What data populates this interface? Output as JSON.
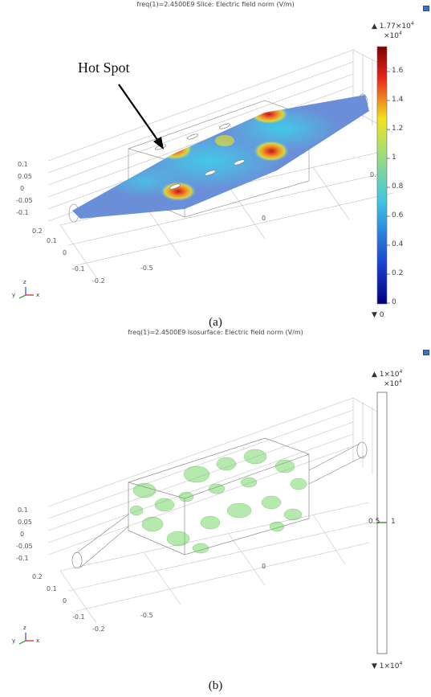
{
  "panel_a": {
    "title": "freq(1)=2.4500E9   Slice: Electric field norm (V/m)",
    "annotation": "Hot Spot",
    "caption": "(a)",
    "colorbar": {
      "max_label": "▲ 1.77×10",
      "max_exp": "4",
      "scale": "×10",
      "scale_exp": "4",
      "ticks": [
        "1.6",
        "1.4",
        "1.2",
        "1",
        "0.8",
        "0.6",
        "0.4",
        "0.2",
        "0"
      ],
      "min_label": "▼ 0"
    },
    "axis_ticks": [
      "0.1",
      "0.05",
      "0",
      "-0.05",
      "-0.1",
      "0.2",
      "0.1",
      "0",
      "-0.1",
      "-0.2",
      "-0.5",
      "0",
      "0."
    ]
  },
  "panel_b": {
    "title": "freq(1)=2.4500E9   Isosurface: Electric field norm (V/m)",
    "caption": "(b)",
    "colorbar": {
      "max_label": "▲ 1×10",
      "max_exp": "4",
      "scale": "×10",
      "scale_exp": "4",
      "mid_label": "1",
      "side_label": "0.5",
      "min_label": "▼ 1×10",
      "min_exp": "4"
    },
    "axis_ticks": [
      "0.1",
      "0.05",
      "0",
      "-0.05",
      "-0.1",
      "0.2",
      "0.1",
      "0",
      "-0.1",
      "-0.2",
      "-0.5",
      "0"
    ]
  },
  "triad": {
    "x": "x",
    "y": "y",
    "z": "z"
  },
  "colors": {
    "cb_top": "#7f0000",
    "cb_red": "#e8241c",
    "cb_yellow": "#f4e21a",
    "cb_cyan": "#3fc6e4",
    "cb_blue": "#1a3fd0",
    "cb_bottom": "#00007f",
    "iso_green": "#5ccf4a",
    "slice_base": "#6a8fd8",
    "corner_icon": "#3a72c4"
  }
}
